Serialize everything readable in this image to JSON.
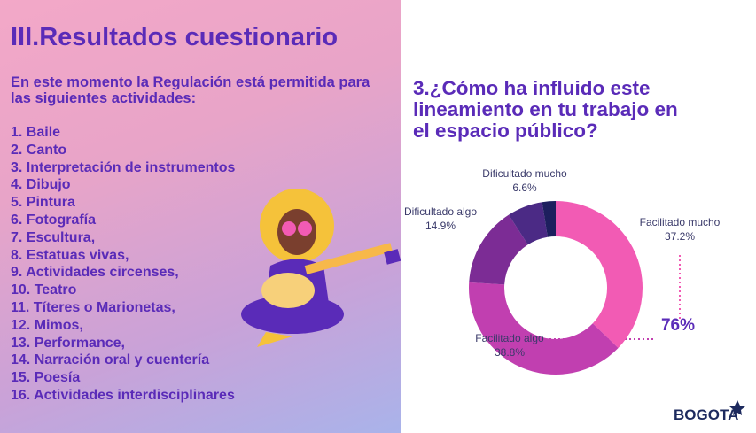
{
  "header": {
    "title": "III.Resultados cuestionario"
  },
  "intro": "En este momento la Regulación está permitida para las siguientes actividades:",
  "list": [
    "1. Baile",
    "2. Canto",
    "3. Interpretación de instrumentos",
    "4. Dibujo",
    "5. Pintura",
    "6. Fotografía",
    "7. Escultura,",
    "8. Estatuas vivas,",
    "9. Actividades circenses,",
    "10. Teatro",
    "11. Títeres o Marionetas,",
    "12. Mimos,",
    "13. Performance,",
    "14. Narración oral y cuentería",
    "15. Poesía",
    "16. Actividades interdisciplinares"
  ],
  "logo": "BOGOTA",
  "chart_data": {
    "type": "donut",
    "title": "3.¿Cómo ha influido este lineamiento en tu trabajo en el espacio público?",
    "categories": [
      "Facilitado mucho",
      "Facilitado algo",
      "Dificultado algo",
      "Dificultado mucho",
      null
    ],
    "values": [
      37.2,
      38.8,
      14.9,
      6.6,
      2.5
    ],
    "value_labels": [
      "37.2%",
      "38.8%",
      "14.9%",
      "6.6%",
      null
    ],
    "colors": [
      "#f25bb4",
      "#c13fb0",
      "#7c2c95",
      "#4b2a85",
      "#1d1f5e"
    ],
    "annotation": "76%"
  }
}
